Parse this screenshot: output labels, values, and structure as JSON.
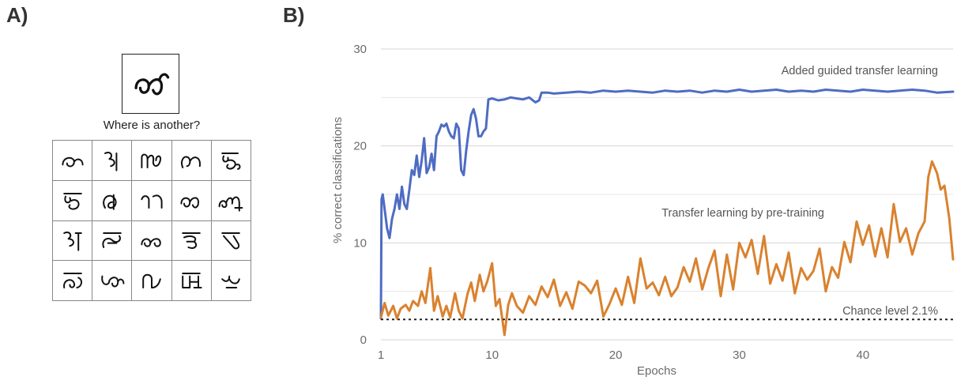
{
  "panel_a": {
    "label": "A)",
    "question": "Where is another?"
  },
  "panel_b": {
    "label": "B)"
  },
  "chart_data": {
    "type": "line",
    "xlabel": "Epochs",
    "ylabel": "% correct classifications",
    "xlim": [
      1,
      47.3
    ],
    "ylim": [
      0,
      30
    ],
    "x_ticks": [
      1,
      10,
      20,
      30,
      40
    ],
    "y_ticks": [
      0,
      10,
      20,
      30
    ],
    "grid": "horizontal",
    "series": [
      {
        "name": "Added guided transfer learning",
        "color": "#4e6cc2",
        "x": [
          1,
          1.05,
          1.15,
          1.3,
          1.5,
          1.7,
          1.9,
          2.1,
          2.3,
          2.5,
          2.7,
          2.9,
          3.1,
          3.3,
          3.5,
          3.7,
          3.9,
          4.1,
          4.3,
          4.5,
          4.7,
          4.9,
          5.1,
          5.3,
          5.5,
          5.7,
          5.9,
          6.1,
          6.3,
          6.5,
          6.7,
          6.9,
          7.1,
          7.3,
          7.5,
          7.7,
          7.9,
          8.1,
          8.3,
          8.5,
          8.7,
          8.9,
          9.1,
          9.3,
          9.5,
          9.7,
          10,
          10.5,
          11,
          11.5,
          12,
          12.5,
          13,
          13.5,
          13.8,
          14,
          14.5,
          15,
          16,
          17,
          18,
          19,
          20,
          21,
          22,
          23,
          24,
          25,
          26,
          27,
          28,
          29,
          30,
          31,
          32,
          33,
          34,
          35,
          36,
          37,
          38,
          39,
          40,
          41,
          42,
          43,
          44,
          45,
          46,
          47.3
        ],
        "values": [
          2.2,
          14.5,
          15.0,
          13.5,
          11.5,
          10.5,
          12.5,
          13.5,
          15.0,
          13.5,
          15.8,
          14.0,
          13.5,
          15.5,
          17.5,
          17.0,
          19.0,
          16.8,
          18.5,
          20.8,
          17.2,
          17.8,
          19.2,
          17.5,
          21.0,
          21.5,
          22.2,
          22.0,
          22.3,
          21.5,
          21.0,
          20.8,
          22.3,
          21.8,
          17.5,
          17.0,
          19.5,
          21.5,
          23.2,
          23.8,
          22.8,
          21.0,
          21.0,
          21.5,
          21.8,
          24.8,
          24.9,
          24.7,
          24.8,
          25.0,
          24.9,
          24.8,
          25.0,
          24.5,
          24.7,
          25.5,
          25.5,
          25.4,
          25.5,
          25.6,
          25.5,
          25.7,
          25.6,
          25.7,
          25.6,
          25.5,
          25.7,
          25.6,
          25.7,
          25.5,
          25.7,
          25.6,
          25.8,
          25.6,
          25.7,
          25.8,
          25.6,
          25.7,
          25.6,
          25.8,
          25.7,
          25.6,
          25.8,
          25.7,
          25.6,
          25.7,
          25.8,
          25.7,
          25.5,
          25.6
        ]
      },
      {
        "name": "Transfer learning by pre-training",
        "color": "#d9822f",
        "x": [
          1,
          1.3,
          1.6,
          2,
          2.3,
          2.6,
          3,
          3.3,
          3.6,
          4,
          4.3,
          4.6,
          5,
          5.3,
          5.6,
          6,
          6.3,
          6.6,
          7,
          7.3,
          7.6,
          8,
          8.3,
          8.6,
          9,
          9.3,
          9.6,
          10,
          10.3,
          10.6,
          11,
          11.3,
          11.6,
          12,
          12.5,
          13,
          13.5,
          14,
          14.5,
          15,
          15.5,
          16,
          16.5,
          17,
          17.5,
          18,
          18.5,
          19,
          19.5,
          20,
          20.5,
          21,
          21.5,
          22,
          22.5,
          23,
          23.5,
          24,
          24.5,
          25,
          25.5,
          26,
          26.5,
          27,
          27.5,
          28,
          28.5,
          29,
          29.5,
          30,
          30.5,
          31,
          31.5,
          32,
          32.5,
          33,
          33.5,
          34,
          34.5,
          35,
          35.5,
          36,
          36.5,
          37,
          37.5,
          38,
          38.5,
          39,
          39.5,
          40,
          40.5,
          41,
          41.5,
          42,
          42.5,
          43,
          43.5,
          44,
          44.5,
          45,
          45.3,
          45.6,
          46,
          46.3,
          46.6,
          47,
          47.3
        ],
        "values": [
          2.3,
          3.8,
          2.5,
          3.5,
          2.2,
          3.2,
          3.6,
          3.0,
          4.0,
          3.5,
          5.0,
          3.8,
          7.4,
          3.0,
          4.5,
          2.4,
          3.5,
          2.3,
          4.8,
          3.0,
          2.2,
          4.7,
          5.9,
          4.0,
          6.7,
          5.0,
          6.0,
          7.9,
          3.5,
          4.2,
          0.5,
          3.6,
          4.8,
          3.5,
          2.8,
          4.5,
          3.6,
          5.5,
          4.4,
          6.2,
          3.5,
          4.9,
          3.2,
          6.0,
          5.6,
          4.8,
          6.1,
          2.4,
          3.7,
          5.3,
          3.6,
          6.5,
          3.8,
          8.4,
          5.3,
          5.9,
          4.6,
          6.5,
          4.5,
          5.4,
          7.5,
          6.0,
          8.4,
          5.2,
          7.4,
          9.2,
          4.5,
          8.8,
          5.2,
          10.0,
          8.5,
          10.3,
          6.8,
          10.7,
          5.8,
          7.8,
          6.1,
          9.0,
          4.8,
          7.4,
          6.2,
          7.1,
          9.4,
          5.0,
          7.5,
          6.4,
          10.1,
          8.0,
          12.2,
          9.8,
          11.8,
          8.6,
          11.5,
          8.5,
          14.0,
          10.1,
          11.5,
          8.8,
          11.0,
          12.2,
          16.8,
          18.4,
          17.2,
          15.5,
          15.9,
          12.5,
          8.3
        ]
      },
      {
        "name": "Chance level 2.1%",
        "style": "dotted",
        "color": "#222222",
        "x": [
          1,
          47.3
        ],
        "values": [
          2.1,
          2.1
        ]
      }
    ]
  }
}
